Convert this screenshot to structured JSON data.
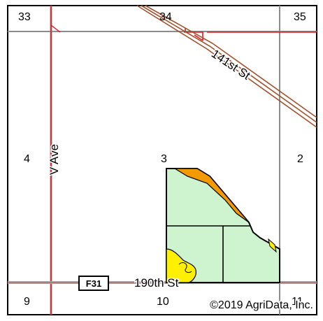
{
  "map": {
    "sections": {
      "s33": "33",
      "s34": "34",
      "s35": "35",
      "s4": "4",
      "s3": "3",
      "s2": "2",
      "s9": "9",
      "s10": "10",
      "s11": "11"
    },
    "roads": {
      "v_ave": "V Ave",
      "st_141": "141st St",
      "st_190": "190th St",
      "county_route": "F31"
    },
    "copyright": "©2019 AgriData, Inc.",
    "colors": {
      "background": "#ffffff",
      "frame": "#000000",
      "section_line": "#8c8c8c",
      "road_red": "#e8141e",
      "road_brown": "#a0522d",
      "field_green": "#cdf4cf",
      "soil_orange": "#f29a00",
      "soil_yellow": "#ffef00",
      "field_outline": "#000000"
    }
  }
}
